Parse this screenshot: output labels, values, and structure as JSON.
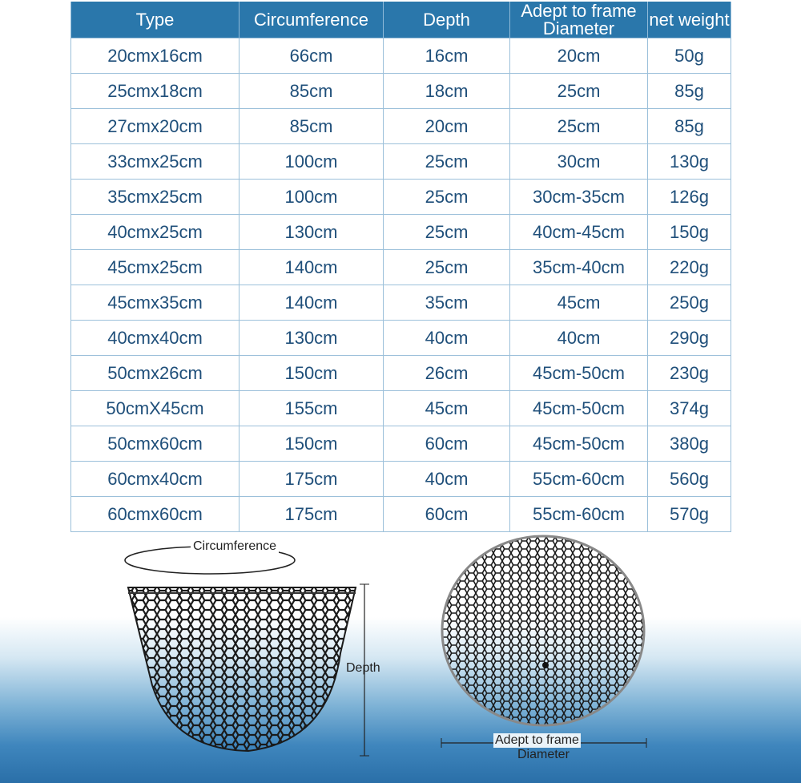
{
  "table": {
    "headers": [
      "Type",
      "Circumference",
      "Depth",
      "Adept to frame Diameter",
      "net weight"
    ],
    "rows": [
      [
        "20cmx16cm",
        "66cm",
        "16cm",
        "20cm",
        "50g"
      ],
      [
        "25cmx18cm",
        "85cm",
        "18cm",
        "25cm",
        "85g"
      ],
      [
        "27cmx20cm",
        "85cm",
        "20cm",
        "25cm",
        "85g"
      ],
      [
        "33cmx25cm",
        "100cm",
        "25cm",
        "30cm",
        "130g"
      ],
      [
        "35cmx25cm",
        "100cm",
        "25cm",
        "30cm-35cm",
        "126g"
      ],
      [
        "40cmx25cm",
        "130cm",
        "25cm",
        "40cm-45cm",
        "150g"
      ],
      [
        "45cmx25cm",
        "140cm",
        "25cm",
        "35cm-40cm",
        "220g"
      ],
      [
        "45cmx35cm",
        "140cm",
        "35cm",
        "45cm",
        "250g"
      ],
      [
        "40cmx40cm",
        "130cm",
        "40cm",
        "40cm",
        "290g"
      ],
      [
        "50cmx26cm",
        "150cm",
        "26cm",
        "45cm-50cm",
        "230g"
      ],
      [
        "50cmX45cm",
        "155cm",
        "45cm",
        "45cm-50cm",
        "374g"
      ],
      [
        "50cmx60cm",
        "150cm",
        "60cm",
        "45cm-50cm",
        "380g"
      ],
      [
        "60cmx40cm",
        "175cm",
        "40cm",
        "55cm-60cm",
        "560g"
      ],
      [
        "60cmx60cm",
        "175cm",
        "60cm",
        "55cm-60cm",
        "570g"
      ]
    ]
  },
  "diagram": {
    "circumference_label": "Circumference",
    "depth_label": "Depth",
    "diameter_label_line1": "Adept to frame",
    "diameter_label_line2": "Diameter"
  },
  "colors": {
    "header_bg": "#2a77ab",
    "cell_text": "#1f4f7a",
    "net": "#1a1a1a"
  }
}
